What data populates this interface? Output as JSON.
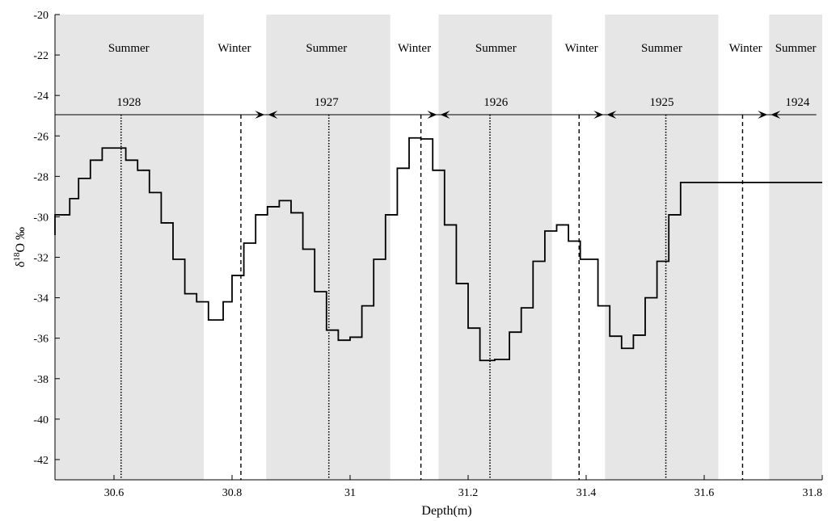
{
  "chart_data": {
    "type": "line",
    "title": "",
    "xlabel": "Depth(m)",
    "ylabel_main": "δ",
    "ylabel_sup": "18",
    "ylabel_rest": "O ‰",
    "xlim": [
      30.5,
      31.8
    ],
    "ylim": [
      -43,
      -20
    ],
    "x_ticks": [
      30.6,
      30.8,
      31,
      31.2,
      31.4,
      31.6,
      31.8
    ],
    "x_tick_labels": [
      "30.6",
      "30.8",
      "31",
      "31.2",
      "31.4",
      "31.6",
      "31.8"
    ],
    "y_ticks": [
      -20,
      -22,
      -24,
      -26,
      -28,
      -30,
      -32,
      -34,
      -36,
      -38,
      -40,
      -42
    ],
    "y_tick_labels": [
      "-20",
      "-22",
      "-24",
      "-26",
      "-28",
      "-30",
      "-32",
      "-34",
      "-36",
      "-38",
      "-40",
      "-42"
    ],
    "grid": false,
    "line_style": "step",
    "series": [
      {
        "x": [
          30.5,
          30.525,
          30.54,
          30.56,
          30.58,
          30.6,
          30.62,
          30.64,
          30.66,
          30.68,
          30.7,
          30.72,
          30.74,
          30.76,
          30.785,
          30.8,
          30.82,
          30.84,
          30.86,
          30.88,
          30.9,
          30.92,
          30.94,
          30.96,
          30.98,
          31.0,
          31.02,
          31.04,
          31.06,
          31.08,
          31.1,
          31.12,
          31.14,
          31.16,
          31.18,
          31.2,
          31.22,
          31.245,
          31.27,
          31.29,
          31.31,
          31.33,
          31.35,
          31.37,
          31.39,
          31.42,
          31.44,
          31.46,
          31.48,
          31.5,
          31.52,
          31.54,
          31.56,
          31.58,
          31.6,
          31.62,
          31.64,
          31.66,
          31.68,
          31.7,
          31.72,
          31.74,
          31.76,
          31.78,
          31.8
        ],
        "y": [
          -29.9,
          -29.1,
          -28.1,
          -27.2,
          -26.6,
          -26.6,
          -27.2,
          -27.7,
          -28.8,
          -30.3,
          -32.1,
          -33.8,
          -34.2,
          -35.1,
          -34.2,
          -32.9,
          -31.3,
          -29.9,
          -29.5,
          -29.2,
          -29.8,
          -31.6,
          -33.7,
          -35.6,
          -36.1,
          -35.95,
          -34.4,
          -32.1,
          -29.9,
          -27.6,
          -26.1,
          -26.15,
          -27.7,
          -30.4,
          -33.3,
          -35.5,
          -37.1,
          -37.05,
          -35.7,
          -34.5,
          -32.2,
          -30.7,
          -30.4,
          -31.2,
          -32.1,
          -34.4,
          -35.9,
          -36.5,
          -35.85,
          -34.0,
          -32.2,
          -29.9,
          -28.3,
          -28.3,
          -28.3,
          -28.3,
          -28.3,
          -28.3,
          -28.3,
          -28.3,
          -28.3,
          -28.3,
          -28.3,
          -28.3,
          -28.3
        ]
      }
    ],
    "summer_bands": [
      [
        30.5,
        30.752
      ],
      [
        30.858,
        31.068
      ],
      [
        31.15,
        31.342
      ],
      [
        31.432,
        31.624
      ],
      [
        31.71,
        31.8
      ]
    ],
    "season_labels": [
      {
        "text": "Summer",
        "x": 30.625
      },
      {
        "text": "Winter",
        "x": 30.804
      },
      {
        "text": "Summer",
        "x": 30.96
      },
      {
        "text": "Winter",
        "x": 31.109
      },
      {
        "text": "Summer",
        "x": 31.247
      },
      {
        "text": "Winter",
        "x": 31.392
      },
      {
        "text": "Summer",
        "x": 31.528
      },
      {
        "text": "Winter",
        "x": 31.67
      },
      {
        "text": "Summer",
        "x": 31.755
      }
    ],
    "year_line_y": -24.95,
    "year_labels": [
      {
        "text": "1928",
        "x": 30.625
      },
      {
        "text": "1927",
        "x": 30.96
      },
      {
        "text": "1926",
        "x": 31.247
      },
      {
        "text": "1925",
        "x": 31.528
      },
      {
        "text": "1924",
        "x": 31.758
      }
    ],
    "year_boundaries": [
      30.858,
      31.15,
      31.432,
      31.71
    ],
    "summer_lines": [
      30.612,
      30.964,
      31.237,
      31.535
    ],
    "winter_lines": [
      30.815,
      31.12,
      31.388,
      31.665
    ]
  }
}
